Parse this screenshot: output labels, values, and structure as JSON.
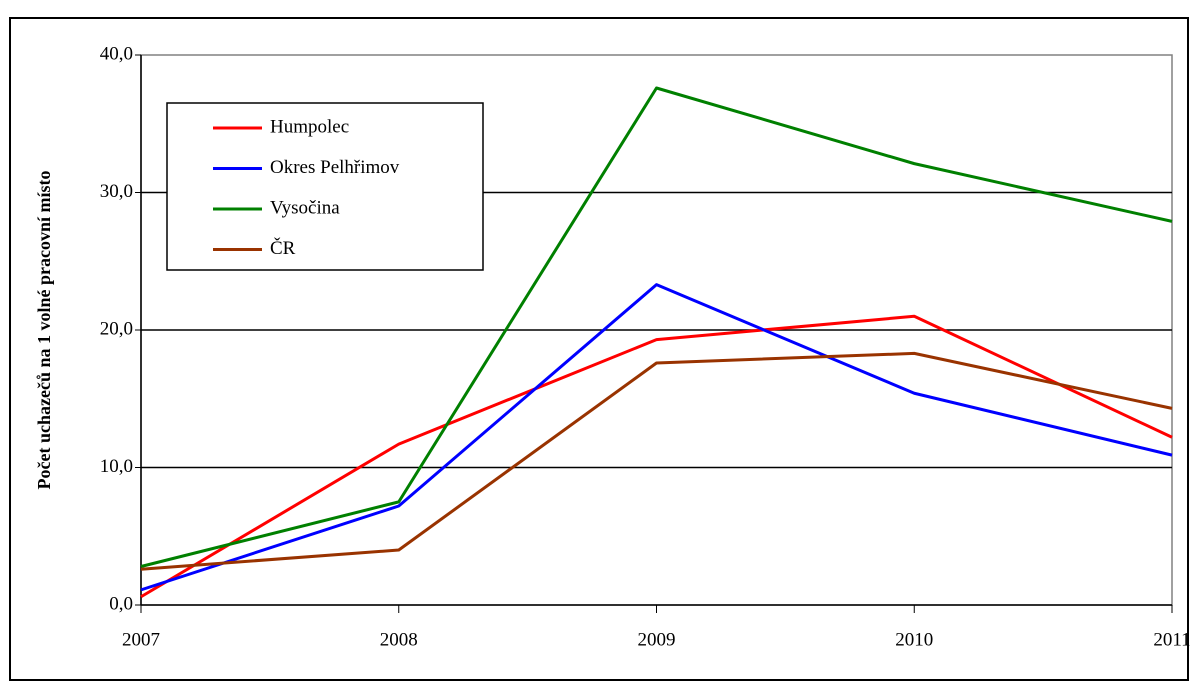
{
  "chart_data": {
    "type": "line",
    "y_label": "Počet uchazečů na 1 volné pracovní místo",
    "x": [
      2007,
      2008,
      2009,
      2010,
      2011
    ],
    "xlim": [
      2007,
      2011
    ],
    "xticks": [
      2007,
      2008,
      2009,
      2010,
      2011
    ],
    "ylim": [
      0,
      40
    ],
    "yticks": [
      {
        "value": 0,
        "label": "0,0"
      },
      {
        "value": 10,
        "label": "10,0"
      },
      {
        "value": 20,
        "label": "20,0"
      },
      {
        "value": 30,
        "label": "30,0"
      },
      {
        "value": 40,
        "label": "40,0"
      }
    ],
    "grid": true,
    "legend": "upper left",
    "series": [
      {
        "name": "Humpolec",
        "color": "#ff0000",
        "values": [
          0.6,
          11.7,
          19.3,
          21.0,
          12.2
        ]
      },
      {
        "name": "Okres Pelhřimov",
        "color": "#0000ff",
        "values": [
          1.1,
          7.2,
          23.3,
          15.4,
          10.9
        ]
      },
      {
        "name": "Vysočina",
        "color": "#008000",
        "values": [
          2.8,
          7.5,
          37.6,
          32.1,
          27.9
        ]
      },
      {
        "name": "ČR",
        "color": "#993300",
        "values": [
          2.6,
          4.0,
          17.6,
          18.3,
          14.3
        ]
      }
    ]
  }
}
